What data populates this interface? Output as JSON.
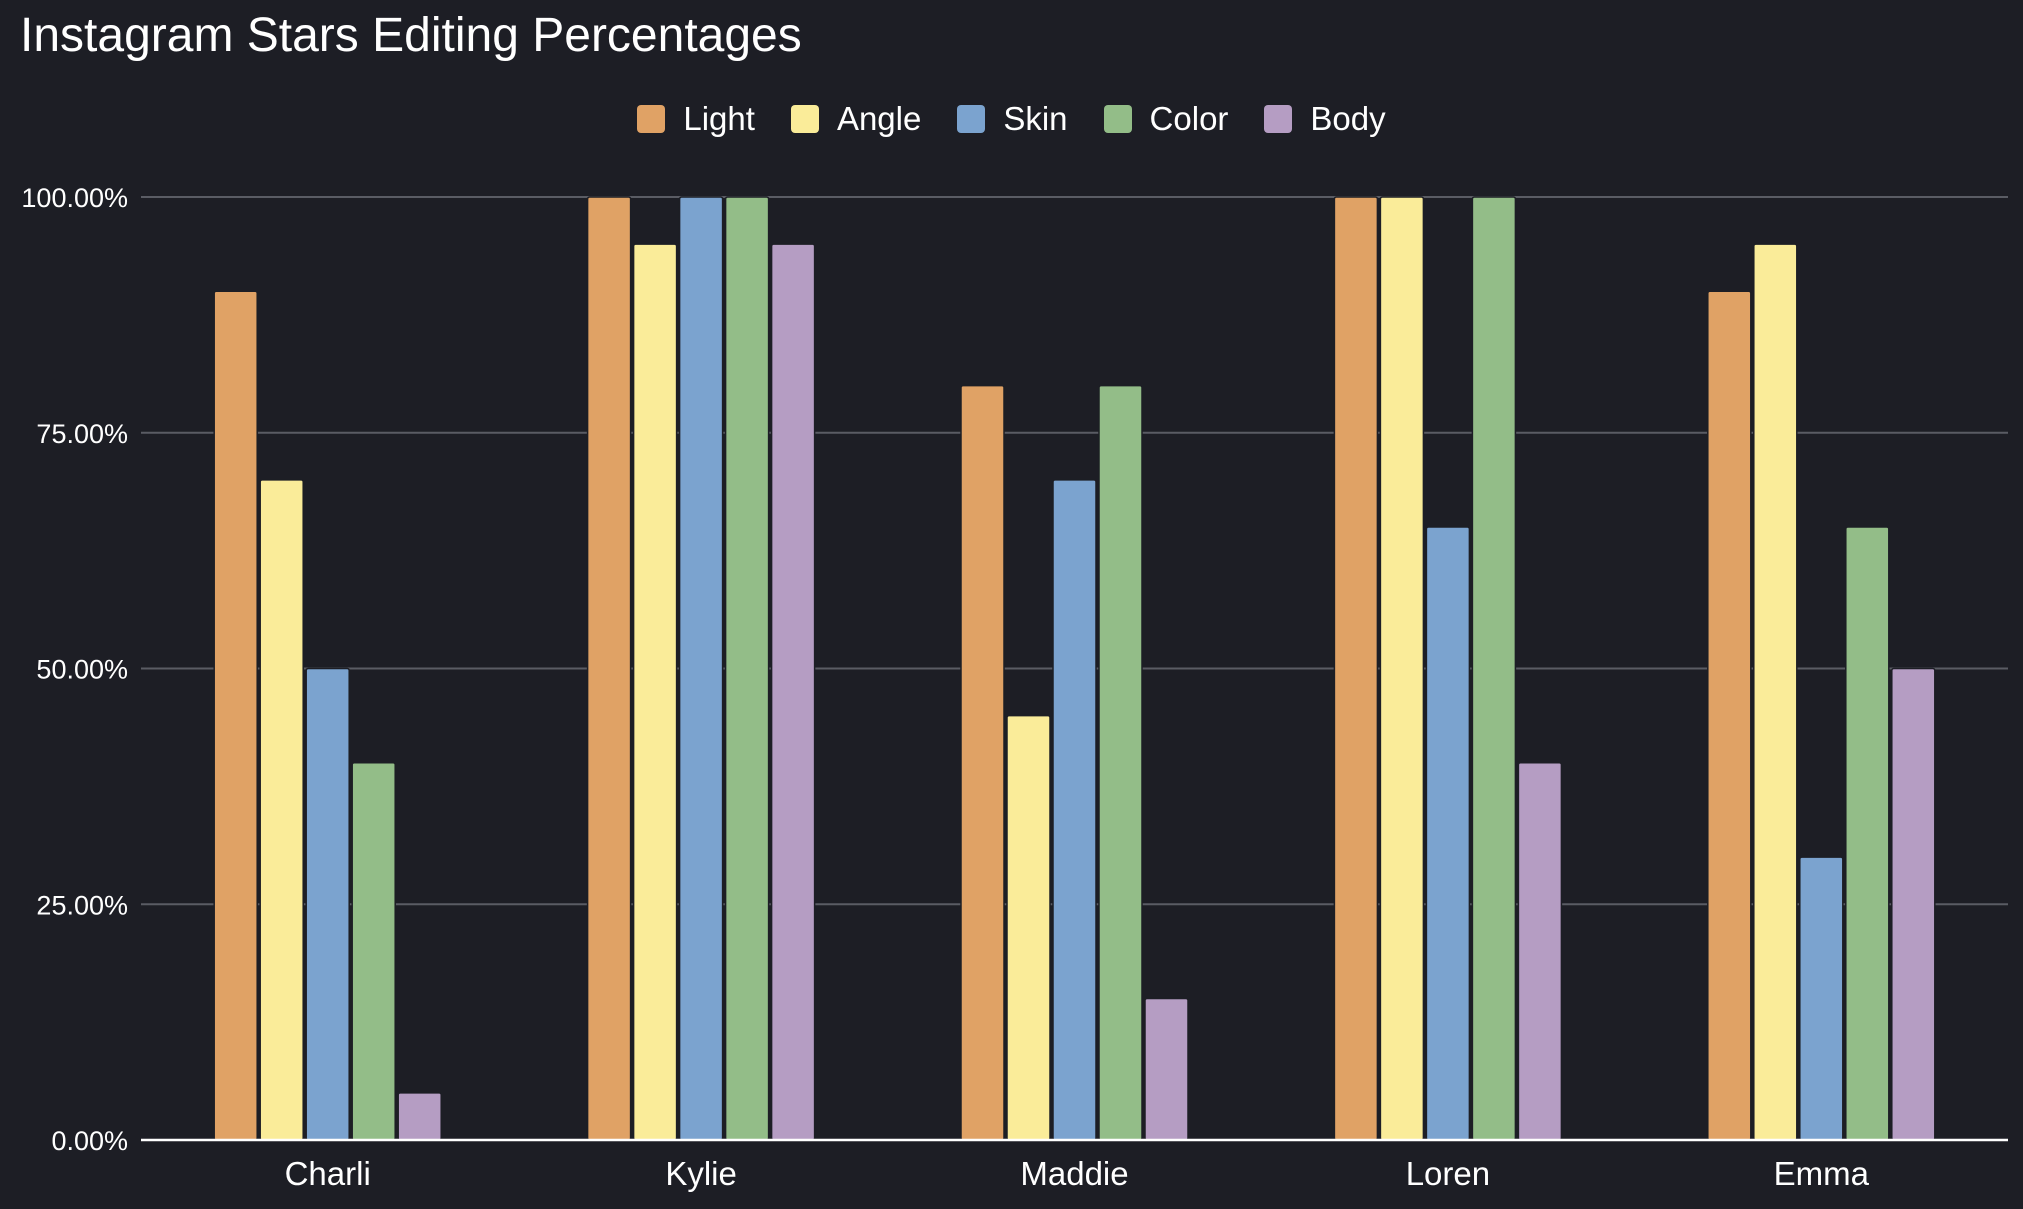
{
  "chart_data": {
    "type": "bar",
    "title": "Instagram Stars Editing Percentages",
    "categories": [
      "Charli",
      "Kylie",
      "Maddie",
      "Loren",
      "Emma"
    ],
    "series": [
      {
        "name": "Light",
        "color": "#e0a265",
        "values": [
          90,
          100,
          80,
          100,
          90
        ]
      },
      {
        "name": "Angle",
        "color": "#faec99",
        "values": [
          70,
          95,
          45,
          100,
          95
        ]
      },
      {
        "name": "Skin",
        "color": "#7ba3cf",
        "values": [
          50,
          100,
          70,
          65,
          30
        ]
      },
      {
        "name": "Color",
        "color": "#93bd88",
        "values": [
          40,
          100,
          80,
          100,
          65
        ]
      },
      {
        "name": "Body",
        "color": "#b59dc3",
        "values": [
          5,
          95,
          15,
          40,
          50
        ]
      }
    ],
    "yticks": [
      "0.00%",
      "25.00%",
      "50.00%",
      "75.00%",
      "100.00%"
    ],
    "ylim": [
      0,
      100
    ],
    "grid": true,
    "legend_position": "top"
  }
}
